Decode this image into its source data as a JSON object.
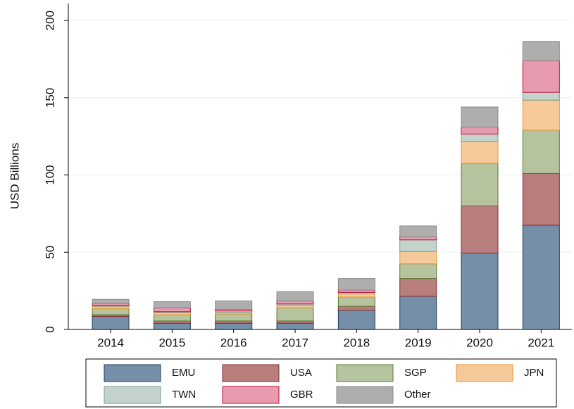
{
  "chart_data": {
    "type": "stacked_bar",
    "ylabel": "USD Billions",
    "categories": [
      "2014",
      "2015",
      "2016",
      "2017",
      "2018",
      "2019",
      "2020",
      "2021"
    ],
    "series": [
      {
        "name": "EMU",
        "color": "#768fa9",
        "edge": "#1f3d5c",
        "values": [
          8.5,
          4,
          4,
          4,
          12.5,
          21.5,
          49.5,
          67.5
        ]
      },
      {
        "name": "USA",
        "color": "#b87e7e",
        "edge": "#8b2a2a",
        "values": [
          1,
          1.5,
          1.5,
          1.5,
          2.5,
          11.5,
          30.5,
          33.5
        ]
      },
      {
        "name": "SGP",
        "color": "#b5c49f",
        "edge": "#5a7a2f",
        "values": [
          4,
          4,
          4.5,
          8.5,
          6,
          9.5,
          27.5,
          28
        ]
      },
      {
        "name": "JPN",
        "color": "#f5c99a",
        "edge": "#e8962a",
        "values": [
          1.5,
          1.5,
          1,
          1.5,
          2,
          8,
          14,
          19.5
        ]
      },
      {
        "name": "TWN",
        "color": "#c4d4cc",
        "edge": "#7a9a90",
        "values": [
          0.5,
          0.5,
          1,
          1,
          1,
          7.5,
          5,
          5
        ]
      },
      {
        "name": "GBR",
        "color": "#e89aae",
        "edge": "#c0103a",
        "values": [
          1.5,
          2.5,
          1,
          2,
          1.5,
          2,
          4.5,
          20.5
        ]
      },
      {
        "name": "Other",
        "color": "#aeaeae",
        "edge": "#8a8a8a",
        "values": [
          2.5,
          4,
          5.5,
          6,
          7.5,
          7,
          13,
          12.5
        ]
      }
    ],
    "ylim": [
      0,
      211
    ],
    "yticks": [
      0,
      50,
      100,
      150,
      200
    ],
    "grid": true
  }
}
